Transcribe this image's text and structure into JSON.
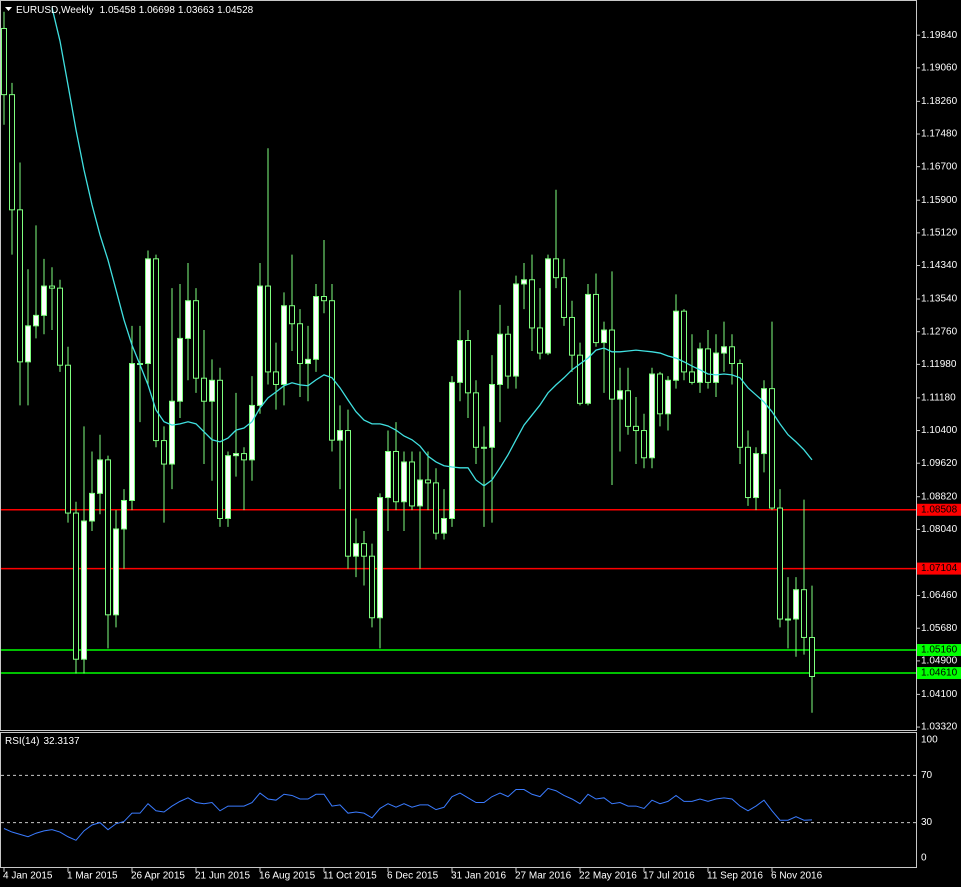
{
  "chart_data": [
    {
      "type": "candlestick",
      "title": "EURUSD,Weekly",
      "categories": [
        "4 Jan 2015",
        null,
        null,
        null,
        null,
        null,
        null,
        null,
        "1 Mar 2015",
        null,
        null,
        null,
        null,
        null,
        null,
        null,
        "26 Apr 2015",
        null,
        null,
        null,
        null,
        null,
        null,
        null,
        "21 Jun 2015",
        null,
        null,
        null,
        null,
        null,
        null,
        null,
        "16 Aug 2015",
        null,
        null,
        null,
        null,
        null,
        null,
        null,
        "11 Oct 2015",
        null,
        null,
        null,
        null,
        null,
        null,
        null,
        "6 Dec 2015",
        null,
        null,
        null,
        null,
        null,
        null,
        null,
        "31 Jan 2016",
        null,
        null,
        null,
        null,
        null,
        null,
        null,
        "27 Mar 2016",
        null,
        null,
        null,
        null,
        null,
        null,
        null,
        "22 May 2016",
        null,
        null,
        null,
        null,
        null,
        null,
        null,
        "17 Jul 2016",
        null,
        null,
        null,
        null,
        null,
        null,
        null,
        "11 Sep 2016",
        null,
        null,
        null,
        null,
        null,
        null,
        null,
        "6 Nov 2016",
        null,
        null,
        null,
        null,
        null
      ],
      "open": [
        1.2,
        1.1842,
        1.1567,
        1.1204,
        1.129,
        1.1315,
        1.1385,
        1.138,
        1.1196,
        1.0843,
        1.0494,
        1.0824,
        1.089,
        1.097,
        1.06,
        1.0805,
        1.0873,
        1.12,
        1.12,
        1.145,
        1.1016,
        1.096,
        1.111,
        1.126,
        1.135,
        1.1165,
        1.111,
        1.116,
        1.083,
        1.098,
        1.0985,
        1.097,
        1.11,
        1.1385,
        1.118,
        1.115,
        1.1338,
        1.1295,
        1.12,
        1.121,
        1.136,
        1.135,
        1.1017,
        1.104,
        1.074,
        1.077,
        1.074,
        1.0593,
        1.088,
        1.099,
        1.087,
        1.0965,
        1.086,
        1.0922,
        1.0915,
        1.0795,
        1.083,
        1.1155,
        1.1255,
        1.113,
        1.1,
        1.1,
        1.115,
        1.127,
        1.117,
        1.139,
        1.14,
        1.1285,
        1.1225,
        1.145,
        1.1405,
        1.131,
        1.122,
        1.1105,
        1.1365,
        1.125,
        1.128,
        1.1115,
        1.1135,
        1.105,
        1.104,
        1.0975,
        1.1175,
        1.108,
        1.116,
        1.1325,
        1.118,
        1.1155,
        1.1235,
        1.1155,
        1.1225,
        1.124,
        1.12,
        1.1,
        1.088,
        1.0985,
        1.114,
        1.0855,
        1.059,
        1.059,
        1.066,
        1.05458
      ],
      "high": [
        1.204,
        1.187,
        1.168,
        1.1425,
        1.153,
        1.145,
        1.143,
        1.14,
        1.124,
        1.087,
        1.105,
        1.099,
        1.103,
        1.098,
        1.085,
        1.09,
        1.129,
        1.129,
        1.147,
        1.146,
        1.105,
        1.138,
        1.139,
        1.144,
        1.138,
        1.128,
        1.121,
        1.119,
        1.099,
        1.113,
        1.1,
        1.117,
        1.144,
        1.1714,
        1.125,
        1.137,
        1.146,
        1.133,
        1.129,
        1.139,
        1.1495,
        1.139,
        1.11,
        1.109,
        1.083,
        1.08,
        1.077,
        1.089,
        1.104,
        1.106,
        1.099,
        1.099,
        1.099,
        1.099,
        1.095,
        1.09,
        1.117,
        1.1375,
        1.128,
        1.116,
        1.105,
        1.122,
        1.134,
        1.129,
        1.141,
        1.144,
        1.146,
        1.138,
        1.146,
        1.1615,
        1.145,
        1.135,
        1.125,
        1.139,
        1.1415,
        1.13,
        1.142,
        1.119,
        1.119,
        1.112,
        1.108,
        1.119,
        1.118,
        1.117,
        1.1365,
        1.133,
        1.127,
        1.125,
        1.128,
        1.127,
        1.13,
        1.127,
        1.121,
        1.104,
        1.1,
        1.116,
        1.13,
        1.09,
        1.069,
        1.069,
        1.0875,
        1.06698
      ],
      "low": [
        1.177,
        1.146,
        1.11,
        1.11,
        1.126,
        1.127,
        1.128,
        1.118,
        1.082,
        1.046,
        1.046,
        1.08,
        1.084,
        1.052,
        1.057,
        1.071,
        1.085,
        1.106,
        1.115,
        1.1,
        1.082,
        1.09,
        1.107,
        1.116,
        1.113,
        1.096,
        1.092,
        1.081,
        1.081,
        1.093,
        1.085,
        1.092,
        1.108,
        1.115,
        1.109,
        1.11,
        1.123,
        1.112,
        1.111,
        1.118,
        1.132,
        1.099,
        1.09,
        1.071,
        1.069,
        1.067,
        1.057,
        1.052,
        1.08,
        1.085,
        1.08,
        1.085,
        1.071,
        1.085,
        1.078,
        1.078,
        1.081,
        1.111,
        1.107,
        1.096,
        1.081,
        1.082,
        1.106,
        1.114,
        1.114,
        1.133,
        1.123,
        1.121,
        1.122,
        1.138,
        1.129,
        1.118,
        1.11,
        1.11,
        1.124,
        1.113,
        1.091,
        1.099,
        1.103,
        1.096,
        1.095,
        1.095,
        1.105,
        1.104,
        1.114,
        1.116,
        1.115,
        1.113,
        1.114,
        1.112,
        1.118,
        1.115,
        1.096,
        1.086,
        1.085,
        1.094,
        1.085,
        1.057,
        1.052,
        1.05,
        1.0505,
        1.03663
      ],
      "close": [
        1.1842,
        1.1567,
        1.1204,
        1.129,
        1.1315,
        1.1385,
        1.138,
        1.1196,
        1.0843,
        1.0494,
        1.0824,
        1.089,
        1.097,
        1.06,
        1.0805,
        1.0873,
        1.12,
        1.12,
        1.145,
        1.1016,
        1.096,
        1.111,
        1.126,
        1.135,
        1.1165,
        1.111,
        1.116,
        1.083,
        1.098,
        1.0985,
        1.097,
        1.11,
        1.1385,
        1.118,
        1.115,
        1.1338,
        1.1295,
        1.12,
        1.121,
        1.136,
        1.135,
        1.1017,
        1.104,
        1.074,
        1.077,
        1.074,
        1.0593,
        1.088,
        1.099,
        1.087,
        1.0965,
        1.086,
        1.0922,
        1.0915,
        1.0795,
        1.083,
        1.1155,
        1.1255,
        1.113,
        1.1,
        1.1,
        1.115,
        1.127,
        1.117,
        1.139,
        1.14,
        1.1285,
        1.1225,
        1.145,
        1.1405,
        1.131,
        1.122,
        1.1105,
        1.1365,
        1.125,
        1.128,
        1.1115,
        1.1135,
        1.105,
        1.104,
        1.0975,
        1.1175,
        1.108,
        1.116,
        1.1325,
        1.118,
        1.1155,
        1.1235,
        1.1155,
        1.1225,
        1.124,
        1.12,
        1.1,
        1.088,
        1.0985,
        1.114,
        1.0855,
        1.059,
        1.059,
        1.066,
        1.0546,
        1.04528
      ],
      "bull_color": "#ffffff",
      "bear_color": "#000000",
      "wick_color": "#7fff7f",
      "ma": {
        "color": "#40e0e0",
        "values": [
          null,
          null,
          null,
          null,
          null,
          null,
          1.205,
          1.197,
          1.1865,
          1.1758,
          1.1662,
          1.1579,
          1.1507,
          1.1447,
          1.1376,
          1.1304,
          1.1244,
          1.1197,
          1.1149,
          1.1089,
          1.1061,
          1.1053,
          1.1056,
          1.1061,
          1.1056,
          1.1037,
          1.1018,
          1.1013,
          1.1022,
          1.1041,
          1.1046,
          1.1061,
          1.1094,
          1.1118,
          1.1132,
          1.1147,
          1.1154,
          1.1149,
          1.1147,
          1.1161,
          1.1173,
          1.1166,
          1.1142,
          1.1113,
          1.1085,
          1.1065,
          1.1056,
          1.1056,
          1.1051,
          1.1041,
          1.1027,
          1.1018,
          1.1003,
          1.0979,
          1.0965,
          1.0956,
          1.0953,
          1.0951,
          1.0951,
          1.0922,
          1.0908,
          1.0922,
          1.0951,
          1.0982,
          1.1018,
          1.1053,
          1.1077,
          1.1101,
          1.113,
          1.1149,
          1.1166,
          1.1185,
          1.1199,
          1.1213,
          1.1232,
          1.1237,
          1.1228,
          1.1228,
          1.123,
          1.1232,
          1.123,
          1.1228,
          1.1225,
          1.1218,
          1.1213,
          1.1204,
          1.1194,
          1.1185,
          1.1175,
          1.1173,
          1.1175,
          1.1173,
          1.1166,
          1.1142,
          1.1125,
          1.1108,
          1.1085,
          1.1056,
          1.103,
          1.1013,
          1.0994,
          1.097
        ]
      },
      "levels": [
        {
          "value": 1.08508,
          "color": "#ff0000"
        },
        {
          "value": 1.07104,
          "color": "#ff0000"
        },
        {
          "value": 1.0516,
          "label": "1.05160",
          "color": "#00ff00"
        },
        {
          "value": 1.0461,
          "label": "1.04610",
          "color": "#00ff00"
        }
      ],
      "ylim": [
        1.0325,
        1.2068
      ],
      "yticks": [
        {
          "value": 1.1984,
          "label": "1.19840"
        },
        {
          "value": 1.1906,
          "label": "1.19060"
        },
        {
          "value": 1.1826,
          "label": "1.18260"
        },
        {
          "value": 1.1748,
          "label": "1.17480"
        },
        {
          "value": 1.167,
          "label": "1.16700"
        },
        {
          "value": 1.159,
          "label": "1.15900"
        },
        {
          "value": 1.1512,
          "label": "1.15120"
        },
        {
          "value": 1.1434,
          "label": "1.14340"
        },
        {
          "value": 1.1354,
          "label": "1.13540"
        },
        {
          "value": 1.1276,
          "label": "1.12760"
        },
        {
          "value": 1.1198,
          "label": "1.11980"
        },
        {
          "value": 1.1118,
          "label": "1.11180"
        },
        {
          "value": 1.104,
          "label": "1.10400"
        },
        {
          "value": 1.0962,
          "label": "1.09620"
        },
        {
          "value": 1.0882,
          "label": "1.08820"
        },
        {
          "value": 1.0804,
          "label": "1.08040"
        },
        {
          "value": 1.0646,
          "label": "1.06460"
        },
        {
          "value": 1.0568,
          "label": "1.05680"
        },
        {
          "value": 1.049,
          "label": "1.04900"
        },
        {
          "value": 1.041,
          "label": "1.04100"
        },
        {
          "value": 1.0332,
          "label": "1.03320"
        }
      ]
    },
    {
      "type": "line",
      "title": "RSI(14)",
      "color": "#3a7bff",
      "values": [
        25,
        22,
        20,
        18,
        21,
        23,
        24,
        22,
        18,
        15,
        23,
        28,
        30,
        24,
        29,
        31,
        38,
        38,
        46,
        40,
        39,
        44,
        48,
        51,
        47,
        46,
        47,
        40,
        44,
        44,
        44,
        47,
        55,
        50,
        49,
        54,
        53,
        50,
        50,
        54,
        54,
        44,
        45,
        38,
        39,
        38,
        34,
        42,
        46,
        43,
        46,
        43,
        45,
        45,
        41,
        43,
        52,
        55,
        51,
        47,
        47,
        52,
        55,
        52,
        58,
        58,
        54,
        52,
        59,
        57,
        53,
        50,
        46,
        54,
        50,
        51,
        46,
        47,
        44,
        44,
        42,
        49,
        46,
        48,
        53,
        48,
        48,
        50,
        48,
        50,
        51,
        50,
        44,
        40,
        44,
        49,
        40,
        32,
        32,
        35,
        32,
        32.3137
      ],
      "ylim": [
        0,
        100
      ],
      "yticks": [
        100,
        70,
        30,
        0
      ]
    }
  ]
}
